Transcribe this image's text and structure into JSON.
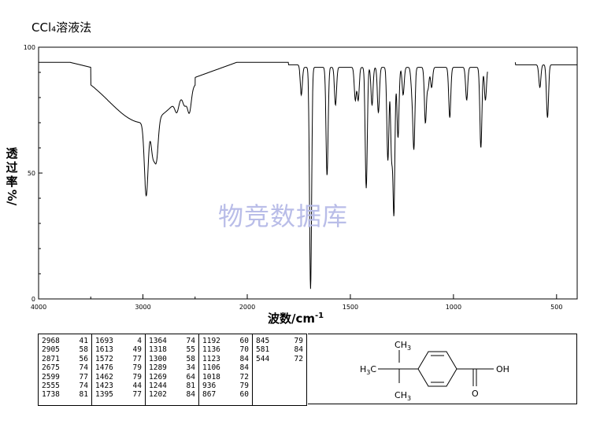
{
  "title": "CCl₄溶液法",
  "watermark": "物竞数据库",
  "chart_data": {
    "type": "line",
    "xlabel": "波数/cm",
    "xlabel_sup": "-1",
    "ylabel_chars": [
      "透",
      "过",
      "率"
    ],
    "ylabel_unit": "%/",
    "xlim": [
      4000,
      400
    ],
    "ylim": [
      0,
      100
    ],
    "xticks": [
      "4000",
      "3000",
      "2000",
      "1500",
      "1000",
      "500"
    ],
    "xtick_values": [
      4000,
      3000,
      2000,
      1500,
      1000,
      500
    ],
    "yticks": [
      "0",
      "50",
      "100"
    ],
    "ytick_values": [
      0,
      50,
      100
    ],
    "gaps": [
      [
        835,
        700
      ]
    ],
    "peaks": [
      [
        2968,
        41
      ],
      [
        2905,
        58
      ],
      [
        2871,
        56
      ],
      [
        2675,
        74
      ],
      [
        2599,
        77
      ],
      [
        2555,
        74
      ],
      [
        1738,
        81
      ],
      [
        1693,
        4
      ],
      [
        1613,
        49
      ],
      [
        1572,
        77
      ],
      [
        1476,
        79
      ],
      [
        1462,
        79
      ],
      [
        1423,
        44
      ],
      [
        1395,
        77
      ],
      [
        1364,
        74
      ],
      [
        1318,
        55
      ],
      [
        1300,
        58
      ],
      [
        1289,
        34
      ],
      [
        1269,
        64
      ],
      [
        1244,
        81
      ],
      [
        1202,
        84
      ],
      [
        1192,
        60
      ],
      [
        1136,
        70
      ],
      [
        1123,
        84
      ],
      [
        1106,
        84
      ],
      [
        1018,
        72
      ],
      [
        936,
        79
      ],
      [
        867,
        60
      ],
      [
        845,
        79
      ],
      [
        581,
        84
      ],
      [
        544,
        72
      ]
    ]
  },
  "peak_table": [
    [
      [
        "2968",
        "41"
      ],
      [
        "2905",
        "58"
      ],
      [
        "2871",
        "56"
      ],
      [
        "2675",
        "74"
      ],
      [
        "2599",
        "77"
      ],
      [
        "2555",
        "74"
      ],
      [
        "1738",
        "81"
      ]
    ],
    [
      [
        "1693",
        "4"
      ],
      [
        "1613",
        "49"
      ],
      [
        "1572",
        "77"
      ],
      [
        "1476",
        "79"
      ],
      [
        "1462",
        "79"
      ],
      [
        "1423",
        "44"
      ],
      [
        "1395",
        "77"
      ]
    ],
    [
      [
        "1364",
        "74"
      ],
      [
        "1318",
        "55"
      ],
      [
        "1300",
        "58"
      ],
      [
        "1289",
        "34"
      ],
      [
        "1269",
        "64"
      ],
      [
        "1244",
        "81"
      ],
      [
        "1202",
        "84"
      ]
    ],
    [
      [
        "1192",
        "60"
      ],
      [
        "1136",
        "70"
      ],
      [
        "1123",
        "84"
      ],
      [
        "1106",
        "84"
      ],
      [
        "1018",
        "72"
      ],
      [
        "936",
        "79"
      ],
      [
        "867",
        "60"
      ]
    ],
    [
      [
        "845",
        "79"
      ],
      [
        "581",
        "84"
      ],
      [
        "544",
        "72"
      ]
    ]
  ],
  "structure": {
    "ch3_top": "CH3",
    "ch3_bottom": "CH3",
    "h3c_left": "H3C",
    "oh": "OH",
    "o": "O"
  }
}
